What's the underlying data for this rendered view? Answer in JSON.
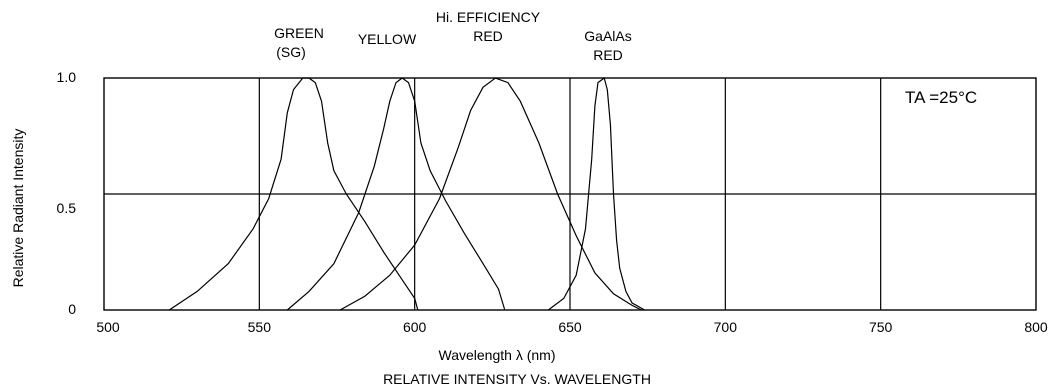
{
  "chart_data": {
    "type": "line",
    "title": "RELATIVE INTENSITY Vs. WAVELENGTH",
    "xlabel": "Wavelength λ (nm)",
    "ylabel": "Relative Radiant Intensity",
    "xlim": [
      500,
      800
    ],
    "ylim": [
      0,
      1.0
    ],
    "x_ticks": [
      "500",
      "550",
      "600",
      "650",
      "700",
      "750",
      "800"
    ],
    "y_ticks": [
      "0",
      "0.5",
      "1.0"
    ],
    "grid": true,
    "annotation": "TA =25°C",
    "series_labels": [
      {
        "line1": "GREEN",
        "line2": "(SG)",
        "peak_x": 565
      },
      {
        "line1": "YELLOW",
        "line2": "",
        "peak_x": 595
      },
      {
        "line1": "Hi. EFFICIENCY",
        "line2": "RED",
        "peak_x": 627
      },
      {
        "line1": "GaAlAs",
        "line2": "RED",
        "peak_x": 660
      }
    ],
    "series": [
      {
        "points": [
          [
            521,
            0
          ],
          [
            530,
            0.08
          ],
          [
            540,
            0.2
          ],
          [
            548,
            0.35
          ],
          [
            553,
            0.48
          ],
          [
            557,
            0.65
          ],
          [
            559,
            0.85
          ],
          [
            561,
            0.95
          ],
          [
            564,
            1.0
          ],
          [
            566,
            1.0
          ],
          [
            568,
            0.98
          ],
          [
            570,
            0.9
          ],
          [
            572,
            0.72
          ],
          [
            574,
            0.6
          ],
          [
            578,
            0.5
          ],
          [
            584,
            0.38
          ],
          [
            590,
            0.25
          ],
          [
            596,
            0.13
          ],
          [
            600,
            0.05
          ],
          [
            601,
            0
          ]
        ]
      },
      {
        "points": [
          [
            559,
            0
          ],
          [
            566,
            0.08
          ],
          [
            574,
            0.2
          ],
          [
            582,
            0.42
          ],
          [
            587,
            0.62
          ],
          [
            590,
            0.78
          ],
          [
            592,
            0.9
          ],
          [
            594,
            0.98
          ],
          [
            596,
            1.0
          ],
          [
            598,
            0.98
          ],
          [
            600,
            0.9
          ],
          [
            602,
            0.72
          ],
          [
            605,
            0.6
          ],
          [
            610,
            0.47
          ],
          [
            616,
            0.33
          ],
          [
            622,
            0.2
          ],
          [
            627,
            0.09
          ],
          [
            629,
            0
          ]
        ]
      },
      {
        "points": [
          [
            576,
            0
          ],
          [
            584,
            0.06
          ],
          [
            592,
            0.15
          ],
          [
            600,
            0.28
          ],
          [
            608,
            0.48
          ],
          [
            614,
            0.7
          ],
          [
            618,
            0.86
          ],
          [
            622,
            0.96
          ],
          [
            626,
            1.0
          ],
          [
            630,
            0.98
          ],
          [
            634,
            0.9
          ],
          [
            640,
            0.72
          ],
          [
            646,
            0.5
          ],
          [
            652,
            0.32
          ],
          [
            658,
            0.16
          ],
          [
            664,
            0.07
          ],
          [
            670,
            0.02
          ],
          [
            673,
            0
          ]
        ]
      },
      {
        "points": [
          [
            643,
            0
          ],
          [
            648,
            0.05
          ],
          [
            652,
            0.15
          ],
          [
            655,
            0.35
          ],
          [
            657,
            0.65
          ],
          [
            658,
            0.88
          ],
          [
            659,
            0.98
          ],
          [
            661,
            1.0
          ],
          [
            662,
            0.95
          ],
          [
            663,
            0.8
          ],
          [
            664,
            0.5
          ],
          [
            665,
            0.3
          ],
          [
            666,
            0.18
          ],
          [
            668,
            0.08
          ],
          [
            670,
            0.03
          ],
          [
            674,
            0
          ]
        ]
      }
    ]
  }
}
